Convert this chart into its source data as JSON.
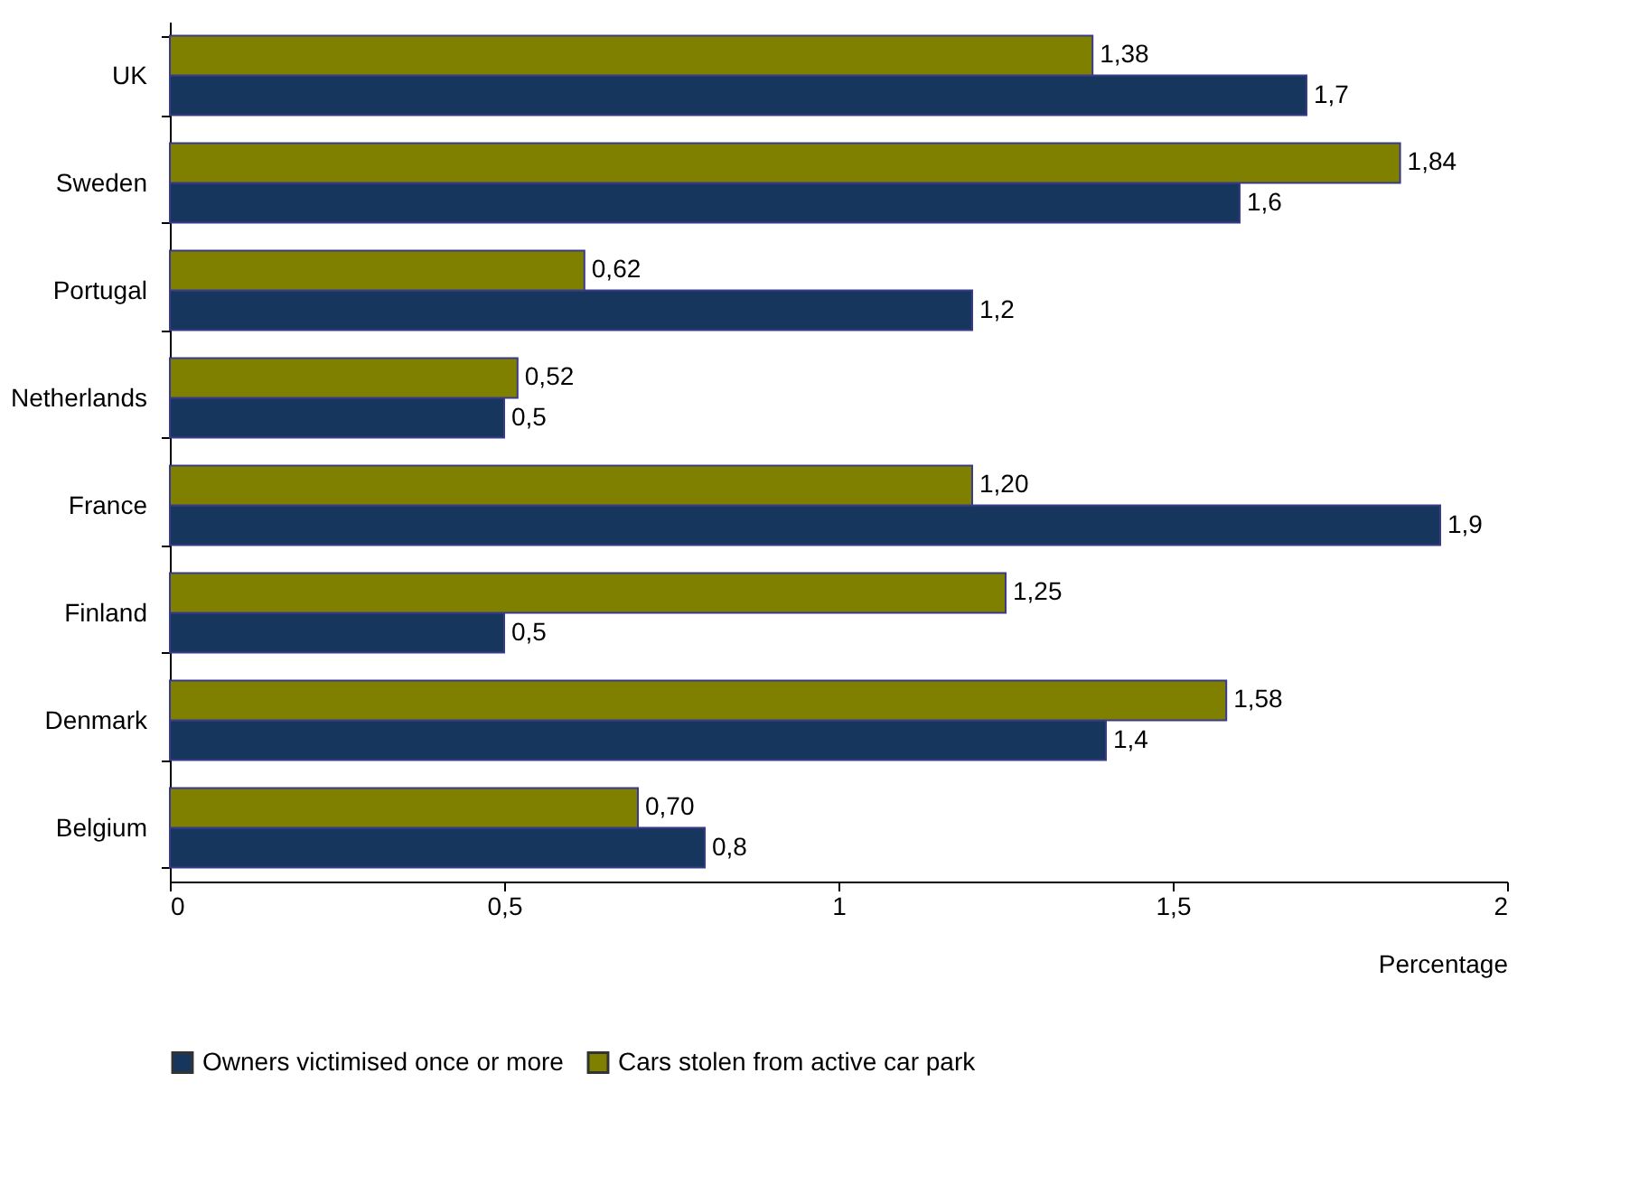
{
  "chart_data": {
    "type": "bar",
    "orientation": "horizontal",
    "xlabel": "Percentage",
    "categories": [
      "UK",
      "Sweden",
      "Portugal",
      "Netherlands",
      "France",
      "Finland",
      "Denmark",
      "Belgium"
    ],
    "series": [
      {
        "name": "Owners victimised once or more",
        "color": "#17365d",
        "values": [
          1.7,
          1.6,
          1.2,
          0.5,
          1.9,
          0.5,
          1.4,
          0.8
        ],
        "value_labels": [
          "1,7",
          "1,6",
          "1,2",
          "0,5",
          "1,9",
          "0,5",
          "1,4",
          "0,8"
        ]
      },
      {
        "name": "Cars stolen from active car park",
        "color": "#808000",
        "values": [
          1.38,
          1.84,
          0.62,
          0.52,
          1.2,
          1.25,
          1.58,
          0.7
        ],
        "value_labels": [
          "1,38",
          "1,84",
          "0,62",
          "0,52",
          "1,20",
          "1,25",
          "1,58",
          "0,70"
        ]
      }
    ],
    "xlim": [
      0,
      2
    ],
    "xticks": [
      0,
      {
        "value": 0.5,
        "label": "0,5"
      },
      1,
      {
        "value": 1.5,
        "label": "1,5"
      },
      2
    ],
    "grid": false,
    "legend": "bottom"
  }
}
